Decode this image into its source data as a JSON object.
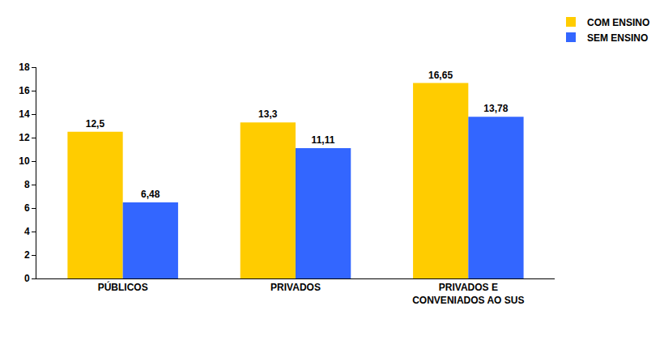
{
  "chart_data": {
    "type": "bar",
    "categories": [
      "PÚBLICOS",
      "PRIVADOS",
      "PRIVADOS E CONVENIADOS AO SUS"
    ],
    "series": [
      {
        "name": "COM ENSINO",
        "color": "#ffcc00",
        "values": [
          12.5,
          13.3,
          16.65
        ],
        "value_labels": [
          "12,5",
          "13,3",
          "16,65"
        ]
      },
      {
        "name": "SEM ENSINO",
        "color": "#3366ff",
        "values": [
          6.48,
          11.11,
          13.78
        ],
        "value_labels": [
          "6,48",
          "11,11",
          "13,78"
        ]
      }
    ],
    "ylim": [
      0,
      18
    ],
    "yticks": [
      0,
      2,
      4,
      6,
      8,
      10,
      12,
      14,
      16,
      18
    ],
    "grid": false,
    "legend": "top right",
    "data_labels": true
  }
}
